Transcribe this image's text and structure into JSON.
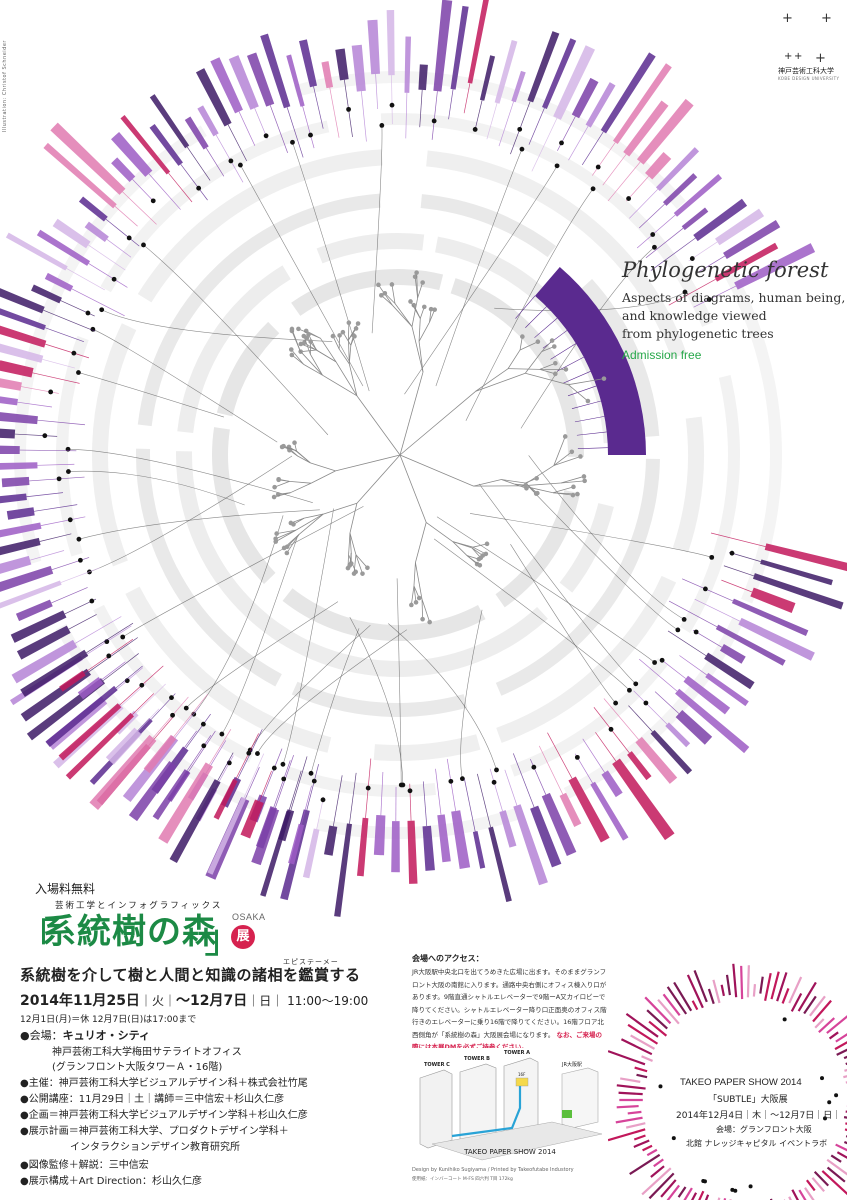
{
  "credit": "Illustration: Christof Schneider",
  "university": {
    "mark": "+ +",
    "name": "神戸芸術工科大学",
    "name_en": "KOBE DESIGN UNIVERSITY"
  },
  "crosses": [
    "+",
    "+",
    "+"
  ],
  "headline_en": {
    "title": "Phylogenetic forest",
    "subtitle_lines": [
      "Aspects of diagrams, human being,",
      "and knowledge viewed",
      "from phylogenetic trees"
    ],
    "admission": "Admission free"
  },
  "colors": {
    "green": "#1c8a45",
    "purple": "#5a2a8f",
    "magenta": "#c2185b",
    "badge": "#d6224f",
    "admission": "#27a84a"
  },
  "main": {
    "admission_jp": "入場料無料",
    "furigana": "芸術工学とインフォグラフィックス",
    "title_jp": "系統樹の森",
    "osaka": "OSAKA",
    "ten": "展",
    "tagline_ruby": "エピステーメー",
    "tagline": "系統樹を介して樹と人間と知識の諸相を鑑賞する",
    "date_start": "2014年11月25日",
    "date_start_day": "火",
    "date_end": "〜12月7日",
    "date_end_day": "日",
    "hours": "11:00〜19:00",
    "closed_note": "12月1日(月)＝休 12月7日(日)は17:00まで",
    "venue_label": "●会場：",
    "venue_name": "キュリオ・シティ",
    "venue_line2": "神戸芸術工科大学梅田サテライトオフィス",
    "venue_line3": "(グランフロント大阪タワーＡ・16階)",
    "organizer": "●主催：神戸芸術工科大学ビジュアルデザイン科＋株式会社竹尾",
    "lecture": "●公開講座：11月29日｜土｜講師＝三中信宏＋杉山久仁彦",
    "planning": "●企画＝神戸芸術工科大学ビジュアルデザイン学科＋杉山久仁彦",
    "exhibit_plan_1": "●展示計画＝神戸芸術工科大学、プロダクトデザイン学科＋",
    "exhibit_plan_2": "インタラクションデザイン教育研究所",
    "supervision": "●図像監修＋解説：三中信宏",
    "direction": "●展示構成＋Art Direction：杉山久仁彦"
  },
  "access": {
    "title": "会場へのアクセス：",
    "body": "JR大阪駅中央北口を出てうめきた広場に出ます。そのままグランフロント大阪の南館に入ります。通路中央右側にオフィス棟入り口があります。9階直通シャトルエレベーターで9階ーA又カイロビーで降りてください。シャトルエレベーター降り口正面奥のオフィス階行きのエレベーターに乗り16階で降りてください。16階フロア北西側角が「系統樹の森」大阪展会場になります。",
    "note": "なお、ご来場の際には本展DMを必ずご持参ください。",
    "map_labels": [
      "TOWER C",
      "TOWER B",
      "TOWER A",
      "JR大阪駅",
      "16F"
    ],
    "map_caption": "TAKEO PAPER SHOW 2014",
    "design_credit": "Design by Kunihiko Sugiyama / Printed by Takeofutabe Industory",
    "paper_credit": "使用紙：インバーコート M-FS 四六判 T目 172kg"
  },
  "takeo": {
    "line1": "TAKEO PAPER SHOW 2014",
    "line2": "「SUBTLE」大阪展",
    "line3": "2014年12月4日｜木｜〜12月7日｜日｜",
    "line4": "会場：グランフロント大阪",
    "line5": "北館 ナレッジキャピタル イベントラボ"
  }
}
